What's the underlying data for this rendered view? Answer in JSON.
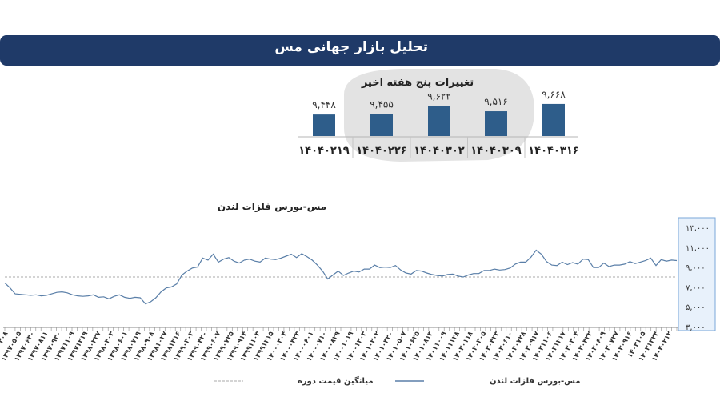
{
  "header": {
    "title": "تحلیل بازار جهانی مس"
  },
  "chart_data": [
    {
      "type": "bar",
      "title": "تغییرات پنج هفته اخیر",
      "categories": [
        "۱۴۰۴۰۲۱۹",
        "۱۴۰۴۰۲۲۶",
        "۱۴۰۴۰۳۰۲",
        "۱۴۰۴۰۳۰۹",
        "۱۴۰۴۰۳۱۶"
      ],
      "values": [
        9448,
        9455,
        9622,
        9516,
        9668
      ],
      "value_labels": [
        "۹,۴۴۸",
        "۹,۴۵۵",
        "۹,۶۲۲",
        "۹,۵۱۶",
        "۹,۶۶۸"
      ],
      "ylim": [
        9000,
        9700
      ],
      "bar_color": "#2e5d8a",
      "highlight_fill": "#e3e3e3"
    },
    {
      "type": "line",
      "title": "مس-بورس فلزات لندن",
      "ylim": [
        3000,
        13000
      ],
      "y_ticks": [
        3000,
        5000,
        7000,
        9000,
        11000,
        13000
      ],
      "y_tick_labels": [
        "۳,۰۰۰",
        "۵,۰۰۰",
        "۷,۰۰۰",
        "۹,۰۰۰",
        "۱۱,۰۰۰",
        "۱۳,۰۰۰"
      ],
      "x_tick_labels": [
        "۱۳۹۷۰۳۰۸",
        "۱۳۹۷۰۵۰۵",
        "۱۳۹۷۰۶۳۰",
        "۱۳۹۷۰۸۱۱",
        "۱۳۹۷۰۹۳۰",
        "۱۳۹۷۱۱۰۹",
        "۱۳۹۷۱۲۱۹",
        "۱۳۹۸۰۲۲۷",
        "۱۳۹۸۰۴۰۳",
        "۱۳۹۸۰۶۰۱",
        "۱۳۹۸۰۷۱۹",
        "۱۳۹۸۰۹۰۸",
        "۱۳۹۸۱۰۲۷",
        "۱۳۹۸۱۲۱۶",
        "۱۳۹۹۰۳۰۳",
        "۱۳۹۹۰۴۲۰",
        "۱۳۹۹۰۶۰۷",
        "۱۳۹۹۰۷۲۵",
        "۱۳۹۹۰۹۱۴",
        "۱۳۹۹۱۱۰۳",
        "۱۳۹۹۱۲۱۵",
        "۱۴۰۰۰۳۰۴",
        "۱۴۰۰۰۴۲۳",
        "۱۴۰۰۰۶۰۱",
        "۱۴۰۰۰۷۱۰",
        "۱۴۰۰۰۸۲۹",
        "۱۴۰۰۱۰۱۹",
        "۱۴۰۰۱۲۰۳",
        "۱۴۰۱۰۲۰۲",
        "۱۴۰۱۰۳۲۰",
        "۱۴۰۱۰۵۰۷",
        "۱۴۰۱۰۶۲۵",
        "۱۴۰۱۰۸۱۳",
        "۱۴۰۱۱۰۰۹",
        "۱۴۰۱۱۱۲۸",
        "۱۴۰۲۰۱۱۸",
        "۱۴۰۲۰۳۰۵",
        "۱۴۰۲۰۴۲۳",
        "۱۴۰۲۰۶۱۰",
        "۱۴۰۲۰۷۲۸",
        "۱۴۰۲۰۹۱۷",
        "۱۴۰۲۱۱۰۶",
        "۱۴۰۲۱۲۱۷",
        "۱۴۰۳۰۳۰۴",
        "۱۴۰۳۰۴۲۲",
        "۱۴۰۳۰۶۰۹",
        "۱۴۰۳۰۷۲۷",
        "۱۴۰۳۰۹۱۶",
        "۱۴۰۳۱۰۵",
        "۱۴۰۳۱۲۲۴",
        "۱۴۰۴۰۲۱۲"
      ],
      "series": [
        {
          "name": "مس-بورس فلزات لندن",
          "color": "#5a7fa8",
          "values": [
            7400,
            6900,
            6300,
            6250,
            6200,
            6150,
            6200,
            6100,
            6150,
            6300,
            6450,
            6500,
            6400,
            6200,
            6100,
            6050,
            6100,
            6200,
            5950,
            6000,
            5800,
            6050,
            6200,
            5950,
            5850,
            5950,
            5900,
            5300,
            5500,
            5900,
            6500,
            6900,
            7000,
            7300,
            8200,
            8600,
            8900,
            9000,
            9900,
            9700,
            10300,
            9500,
            9800,
            9950,
            9600,
            9400,
            9700,
            9800,
            9600,
            9500,
            9900,
            9800,
            9750,
            9900,
            10100,
            10300,
            9950,
            10350,
            10050,
            9700,
            9200,
            8600,
            7800,
            8200,
            8600,
            8150,
            8400,
            8600,
            8500,
            8800,
            8800,
            9200,
            8950,
            9000,
            8950,
            9150,
            8700,
            8400,
            8300,
            8650,
            8600,
            8400,
            8250,
            8150,
            8100,
            8250,
            8300,
            8100,
            8000,
            8200,
            8350,
            8350,
            8650,
            8650,
            8800,
            8700,
            8750,
            8900,
            9300,
            9500,
            9500,
            10000,
            10700,
            10300,
            9550,
            9200,
            9150,
            9500,
            9250,
            9450,
            9300,
            9800,
            9750,
            8950,
            8950,
            9400,
            9050,
            9200,
            9200,
            9300,
            9550,
            9350,
            9500,
            9650,
            9900,
            9150,
            9750,
            9600,
            9700,
            9650
          ]
        },
        {
          "name": "میانگین قیمت دوره",
          "color": "#a9a9a9",
          "values": [
            8000,
            8000
          ]
        }
      ],
      "legend": "bottom"
    }
  ]
}
